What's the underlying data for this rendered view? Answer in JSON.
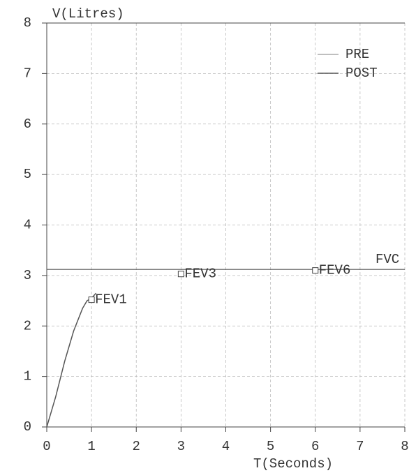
{
  "chart_data": {
    "type": "line",
    "y_label": "V(Litres)",
    "x_label": "T(Seconds)",
    "xlim": [
      0,
      8
    ],
    "ylim": [
      0,
      8
    ],
    "xticks": [
      0,
      1,
      2,
      3,
      4,
      5,
      6,
      7,
      8
    ],
    "yticks": [
      0,
      1,
      2,
      3,
      4,
      5,
      6,
      7,
      8
    ],
    "grid": true,
    "legend": "upper right",
    "series": [
      {
        "name": "PRE",
        "color": "#aaaaaa",
        "x": [],
        "values": []
      },
      {
        "name": "POST",
        "color": "#555555",
        "x": [
          0,
          0.1,
          0.2,
          0.4,
          0.6,
          0.8,
          0.9,
          1.0,
          1.1
        ],
        "values": [
          0,
          0.3,
          0.6,
          1.3,
          1.9,
          2.35,
          2.5,
          2.55,
          2.65
        ]
      }
    ],
    "markers": [
      {
        "label": "FEV1",
        "x": 1,
        "value": 2.52
      },
      {
        "label": "FEV3",
        "x": 3,
        "value": 3.03
      },
      {
        "label": "FEV6",
        "x": 6,
        "value": 3.1
      }
    ],
    "fvc": {
      "label": "FVC",
      "value": 3.12
    }
  }
}
